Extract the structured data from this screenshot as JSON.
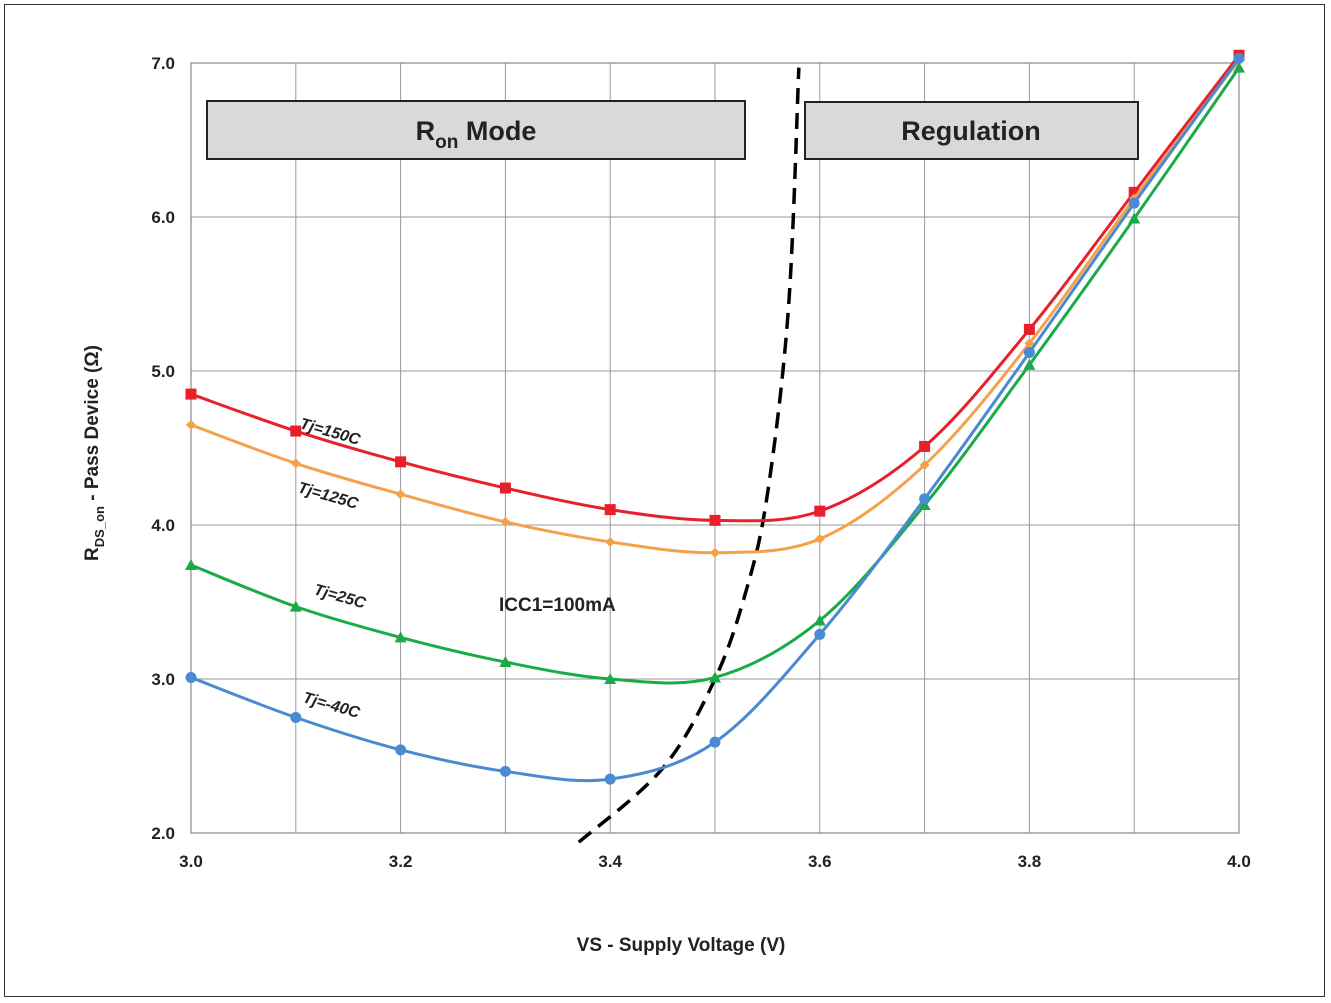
{
  "chart_data": {
    "type": "line",
    "xlabel": "VS - Supply Voltage (V)",
    "ylabel": {
      "main": "R",
      "sub": "DS_on",
      "rest": " - Pass Device (Ω)"
    },
    "xlim": [
      3.0,
      4.0
    ],
    "ylim": [
      2.0,
      7.0
    ],
    "x_ticks": [
      "3.0",
      "3.2",
      "3.4",
      "3.6",
      "3.8",
      "4.0"
    ],
    "y_ticks": [
      "2.0",
      "3.0",
      "4.0",
      "5.0",
      "6.0",
      "7.0"
    ],
    "grid": true,
    "x": [
      3.0,
      3.1,
      3.2,
      3.3,
      3.4,
      3.5,
      3.6,
      3.7,
      3.8,
      3.9,
      4.0
    ],
    "series": [
      {
        "name": "Tj=150C",
        "color": "#e8202a",
        "marker": "square",
        "values": [
          4.85,
          4.61,
          4.41,
          4.24,
          4.1,
          4.03,
          4.09,
          4.51,
          5.27,
          6.16,
          7.05
        ]
      },
      {
        "name": "Tj=125C",
        "color": "#f5a14a",
        "marker": "diamond",
        "values": [
          4.65,
          4.4,
          4.2,
          4.02,
          3.89,
          3.82,
          3.91,
          4.39,
          5.18,
          6.12,
          7.02
        ]
      },
      {
        "name": "Tj=25C",
        "color": "#1aab48",
        "marker": "triangle",
        "values": [
          3.74,
          3.47,
          3.27,
          3.11,
          3.0,
          3.01,
          3.38,
          4.13,
          5.04,
          5.99,
          6.97
        ]
      },
      {
        "name": "Tj=-40C",
        "color": "#4a8ad0",
        "marker": "circle",
        "values": [
          3.01,
          2.75,
          2.54,
          2.4,
          2.35,
          2.59,
          3.29,
          4.17,
          5.12,
          6.09,
          7.03
        ]
      }
    ],
    "boundary": {
      "style": "dashed",
      "color": "#000000",
      "x": [
        3.37,
        3.45,
        3.5,
        3.53,
        3.55,
        3.57,
        3.58
      ],
      "y": [
        1.94,
        2.42,
        3.0,
        3.58,
        4.2,
        5.4,
        6.97
      ]
    },
    "regions": [
      {
        "label_main": "R",
        "label_sub": "on",
        "label_rest": " Mode"
      },
      {
        "label_main": "Regulation",
        "label_sub": "",
        "label_rest": ""
      }
    ],
    "annotation": "ICC1=100mA"
  }
}
